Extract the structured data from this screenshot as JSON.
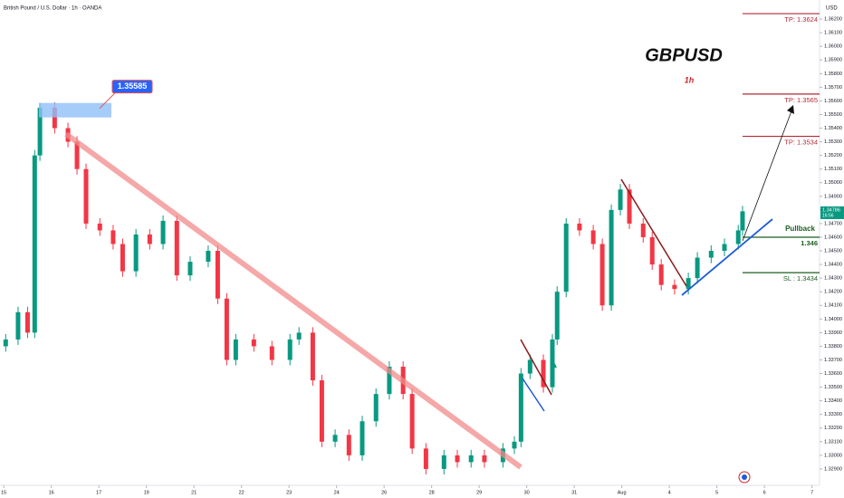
{
  "chart_data": {
    "type": "candlestick",
    "header": "British Pound / U.S. Dollar · 1h · OANDA",
    "currency": "USD",
    "title": "GBPUSD",
    "subtitle": "1h",
    "peak_label": 1.35585,
    "last_price": 1.34786,
    "countdown": "16:56",
    "pullback_text": "Pullback",
    "levels": [
      {
        "value": 1.3624,
        "label": "TP: 1.3624"
      },
      {
        "value": 1.3565,
        "label": "TP: 1.3565"
      },
      {
        "value": 1.3534,
        "label": "TP: 1.3534"
      },
      {
        "value": 1.346,
        "label": "1.346"
      },
      {
        "value": 1.3434,
        "label": "SL : 1.3434"
      }
    ],
    "level_colors": [
      "#b22833",
      "#b22833",
      "#b22833",
      "#1b5e20",
      "#1b5e20"
    ],
    "up_color": "#089981",
    "down_color": "#f23645",
    "x": [
      0.04,
      0.3,
      0.5,
      0.65,
      0.76,
      1.07,
      1.35,
      1.54,
      1.73,
      2.02,
      2.3,
      2.5,
      2.78,
      3.07,
      3.35,
      3.64,
      3.92,
      4.3,
      4.5,
      4.69,
      4.88,
      5.26,
      5.64,
      6.02,
      6.21,
      6.5,
      6.69,
      6.97,
      7.26,
      7.54,
      7.83,
      8.11,
      8.4,
      8.59,
      8.88,
      9.26,
      9.54,
      9.83,
      10.11,
      10.5,
      10.74,
      10.88,
      11.07,
      11.35,
      11.54,
      11.64,
      11.83,
      12.11,
      12.4,
      12.59,
      12.78,
      12.97,
      13.16,
      13.45,
      13.64,
      13.83,
      14.11,
      14.4,
      14.59,
      14.88,
      15.16,
      15.45,
      15.54
    ],
    "open": [
      1.338,
      1.3385,
      1.3405,
      1.339,
      1.352,
      1.3555,
      1.354,
      1.353,
      1.351,
      1.347,
      1.3465,
      1.3455,
      1.3435,
      1.3462,
      1.3455,
      1.3472,
      1.3432,
      1.3442,
      1.345,
      1.3415,
      1.337,
      1.3385,
      1.338,
      1.337,
      1.3385,
      1.339,
      1.3355,
      1.331,
      1.3315,
      1.33,
      1.3325,
      1.3345,
      1.3365,
      1.3345,
      1.3305,
      1.329,
      1.33,
      1.3295,
      1.33,
      1.3295,
      1.3305,
      1.331,
      1.336,
      1.337,
      1.335,
      1.3385,
      1.342,
      1.347,
      1.3465,
      1.3455,
      1.341,
      1.348,
      1.3495,
      1.347,
      1.346,
      1.344,
      1.3425,
      1.3422,
      1.343,
      1.3445,
      1.345,
      1.3455,
      1.3465
    ],
    "high": [
      1.3389,
      1.3409,
      1.3409,
      1.3524,
      1.35585,
      1.3559,
      1.3544,
      1.3534,
      1.3514,
      1.3474,
      1.3469,
      1.3459,
      1.3466,
      1.3466,
      1.3476,
      1.3476,
      1.3446,
      1.3454,
      1.3454,
      1.3419,
      1.3389,
      1.3389,
      1.3384,
      1.3389,
      1.3394,
      1.3394,
      1.3359,
      1.3319,
      1.3319,
      1.3329,
      1.3349,
      1.3369,
      1.3369,
      1.3349,
      1.3309,
      1.3304,
      1.3304,
      1.3304,
      1.3304,
      1.3309,
      1.3314,
      1.3364,
      1.3374,
      1.3374,
      1.3389,
      1.3424,
      1.3474,
      1.3474,
      1.3469,
      1.3459,
      1.3484,
      1.3499,
      1.3499,
      1.3474,
      1.3464,
      1.3444,
      1.3429,
      1.3434,
      1.3449,
      1.3454,
      1.3459,
      1.3469,
      1.3483
    ],
    "low": [
      1.3376,
      1.3381,
      1.3386,
      1.3386,
      1.3516,
      1.3536,
      1.3526,
      1.3506,
      1.3466,
      1.3461,
      1.3451,
      1.3431,
      1.3431,
      1.3451,
      1.3451,
      1.3428,
      1.3428,
      1.3438,
      1.3411,
      1.3366,
      1.3366,
      1.3376,
      1.3366,
      1.3366,
      1.3381,
      1.3351,
      1.3306,
      1.3306,
      1.3296,
      1.3296,
      1.3321,
      1.3341,
      1.3341,
      1.3301,
      1.3286,
      1.3286,
      1.3291,
      1.3291,
      1.3291,
      1.3291,
      1.3301,
      1.3306,
      1.3356,
      1.3346,
      1.3346,
      1.3381,
      1.3416,
      1.3461,
      1.3451,
      1.3406,
      1.3406,
      1.3476,
      1.3466,
      1.3456,
      1.3436,
      1.3421,
      1.3418,
      1.3418,
      1.3426,
      1.3441,
      1.3446,
      1.3451,
      1.3461
    ],
    "close": [
      1.3385,
      1.3405,
      1.339,
      1.352,
      1.3555,
      1.354,
      1.353,
      1.351,
      1.347,
      1.3465,
      1.3455,
      1.3435,
      1.3462,
      1.3455,
      1.3472,
      1.3432,
      1.3442,
      1.345,
      1.3415,
      1.337,
      1.3385,
      1.338,
      1.337,
      1.3385,
      1.339,
      1.3355,
      1.331,
      1.3315,
      1.33,
      1.3325,
      1.3345,
      1.3365,
      1.3345,
      1.3305,
      1.329,
      1.33,
      1.3295,
      1.33,
      1.3295,
      1.3305,
      1.331,
      1.336,
      1.337,
      1.335,
      1.3385,
      1.342,
      1.347,
      1.3465,
      1.3455,
      1.341,
      1.348,
      1.3495,
      1.347,
      1.346,
      1.344,
      1.3425,
      1.3422,
      1.343,
      1.3445,
      1.345,
      1.3455,
      1.3465,
      1.3479
    ],
    "xlim": [
      -0.08,
      17.16
    ],
    "xticks": [
      {
        "value": 0,
        "label": "15"
      },
      {
        "value": 1,
        "label": "16"
      },
      {
        "value": 2,
        "label": "17"
      },
      {
        "value": 3,
        "label": "19"
      },
      {
        "value": 4,
        "label": "21"
      },
      {
        "value": 5,
        "label": "22"
      },
      {
        "value": 6,
        "label": "23"
      },
      {
        "value": 7,
        "label": "24"
      },
      {
        "value": 8,
        "label": "26"
      },
      {
        "value": 9,
        "label": "28"
      },
      {
        "value": 10,
        "label": "29"
      },
      {
        "value": 11,
        "label": "30"
      },
      {
        "value": 12,
        "label": "31"
      },
      {
        "value": 13,
        "label": "Aug"
      },
      {
        "value": 14,
        "label": "4"
      },
      {
        "value": 15,
        "label": "5"
      },
      {
        "value": 16,
        "label": "6"
      },
      {
        "value": 17,
        "label": "7"
      }
    ],
    "ylim": [
      1.3278,
      1.3634
    ],
    "yticks": [
      {
        "value": 1.329,
        "label": "1.32900"
      },
      {
        "value": 1.33,
        "label": "1.33000"
      },
      {
        "value": 1.331,
        "label": "1.33100"
      },
      {
        "value": 1.332,
        "label": "1.33200"
      },
      {
        "value": 1.333,
        "label": "1.33300"
      },
      {
        "value": 1.334,
        "label": "1.33400"
      },
      {
        "value": 1.335,
        "label": "1.33500"
      },
      {
        "value": 1.336,
        "label": "1.33600"
      },
      {
        "value": 1.337,
        "label": "1.33700"
      },
      {
        "value": 1.338,
        "label": "1.33800"
      },
      {
        "value": 1.339,
        "label": "1.33900"
      },
      {
        "value": 1.34,
        "label": "1.34000"
      },
      {
        "value": 1.341,
        "label": "1.34100"
      },
      {
        "value": 1.342,
        "label": "1.34200"
      },
      {
        "value": 1.343,
        "label": "1.34300"
      },
      {
        "value": 1.344,
        "label": "1.34400"
      },
      {
        "value": 1.345,
        "label": "1.34500"
      },
      {
        "value": 1.346,
        "label": "1.34600"
      },
      {
        "value": 1.347,
        "label": "1.34700"
      },
      {
        "value": 1.348,
        "label": "1.34800"
      },
      {
        "value": 1.349,
        "label": "1.34900"
      },
      {
        "value": 1.35,
        "label": "1.35000"
      },
      {
        "value": 1.351,
        "label": "1.35100"
      },
      {
        "value": 1.352,
        "label": "1.35200"
      },
      {
        "value": 1.353,
        "label": "1.35300"
      },
      {
        "value": 1.354,
        "label": "1.35400"
      },
      {
        "value": 1.355,
        "label": "1.35500"
      },
      {
        "value": 1.356,
        "label": "1.35600"
      },
      {
        "value": 1.357,
        "label": "1.35700"
      },
      {
        "value": 1.358,
        "label": "1.35800"
      },
      {
        "value": 1.359,
        "label": "1.35900"
      },
      {
        "value": 1.36,
        "label": "1.36000"
      },
      {
        "value": 1.361,
        "label": "1.36100"
      },
      {
        "value": 1.362,
        "label": "1.36200"
      }
    ]
  }
}
